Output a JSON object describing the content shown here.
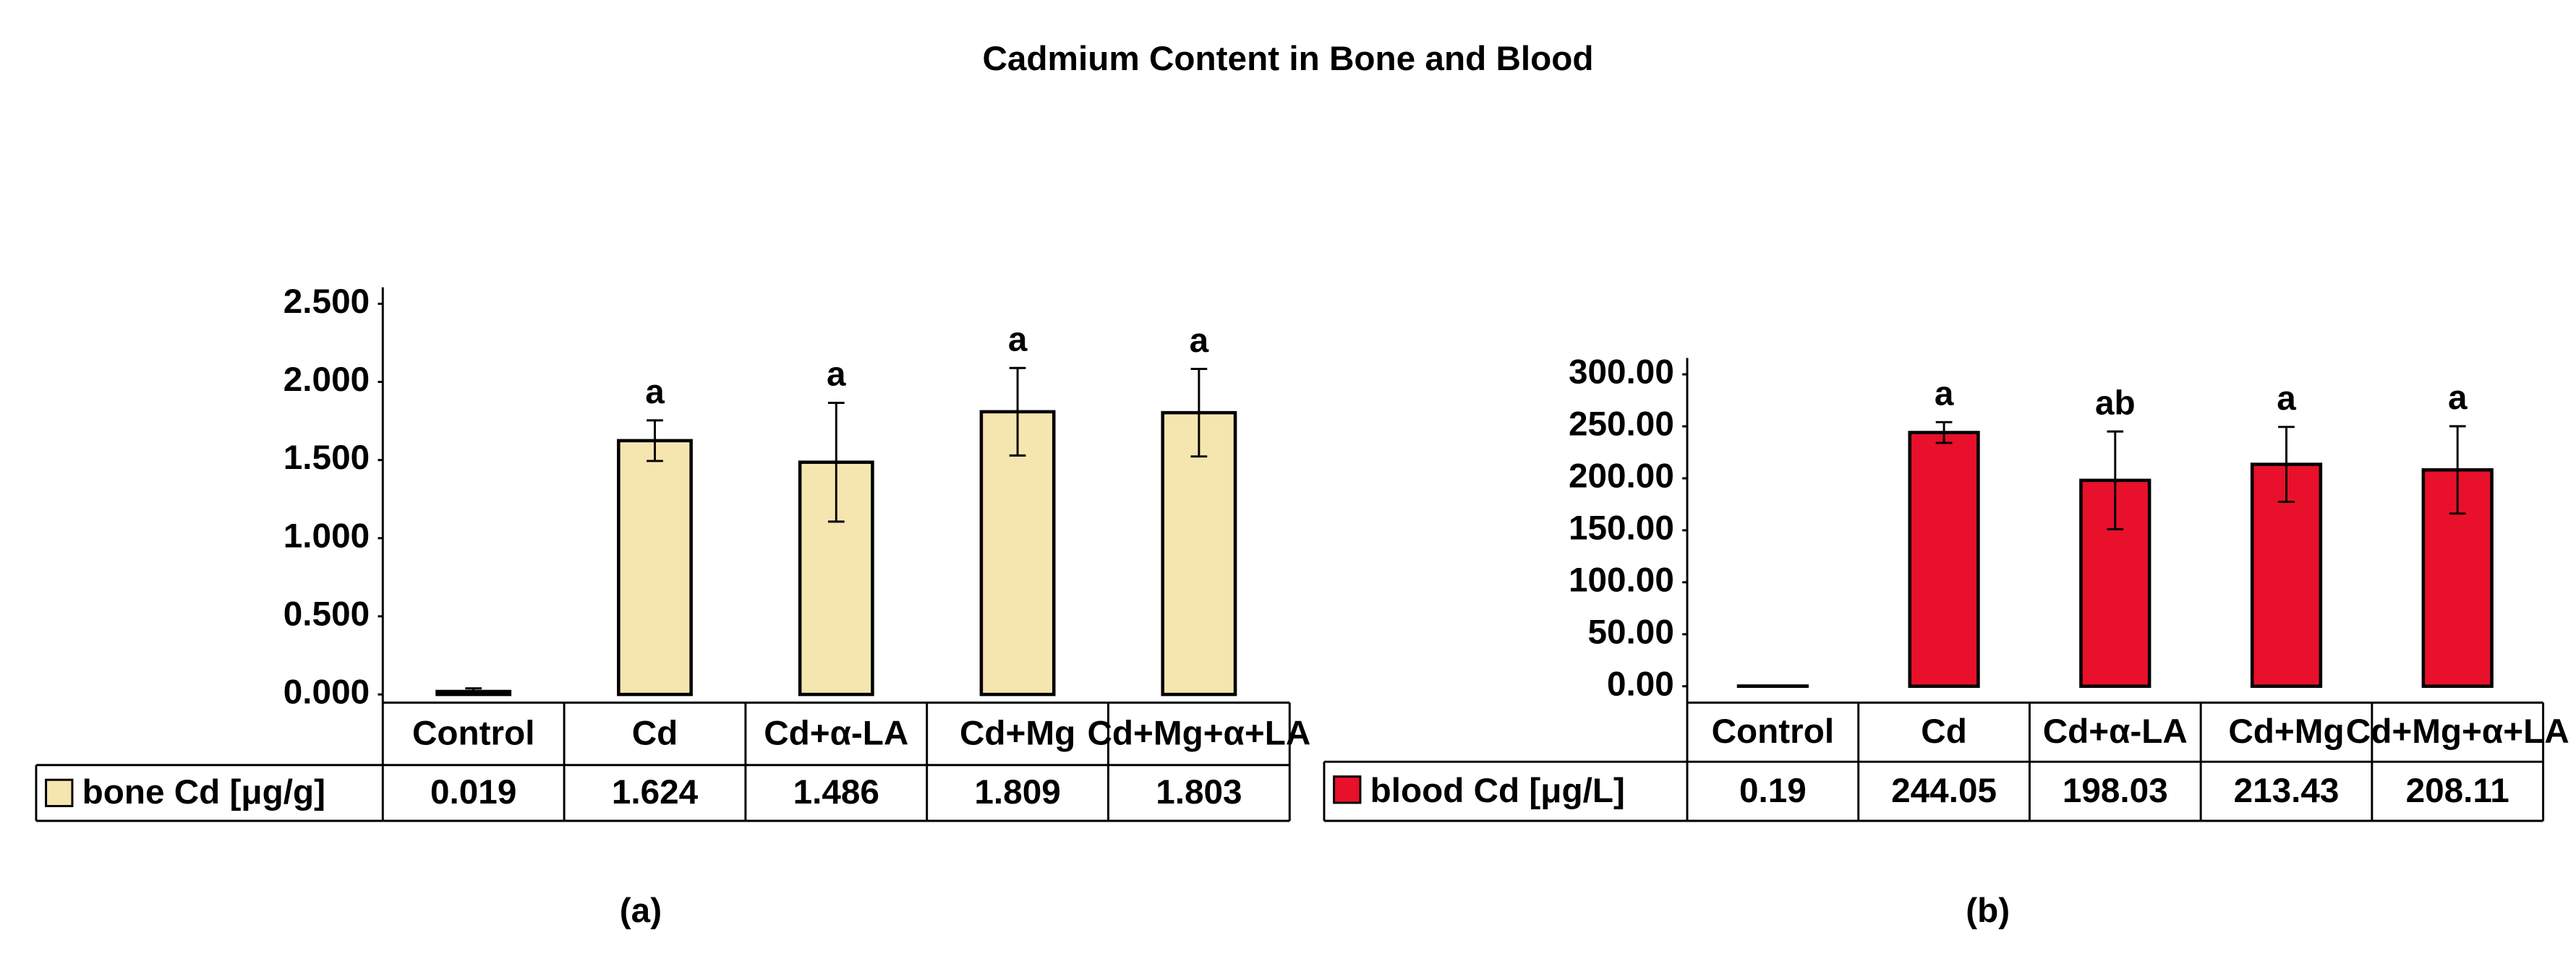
{
  "title": "Cadmium Content in Bone and Blood",
  "chart_data": [
    {
      "type": "bar",
      "panel_label": "(a)",
      "categories": [
        "Control",
        "Cd",
        "Cd+α-LA",
        "Cd+Mg",
        "Cd+Mg+α+LA"
      ],
      "series": [
        {
          "name": "bone Cd [μg/g]",
          "color": "#f5e6b0",
          "values": [
            0.019,
            1.624,
            1.486,
            1.809,
            1.803
          ],
          "errors": [
            0.02,
            0.13,
            0.38,
            0.28,
            0.28
          ],
          "letters": [
            null,
            "a",
            "a",
            "a",
            "a"
          ]
        }
      ],
      "ylim": [
        0,
        2.5
      ],
      "yticks": [
        {
          "value": 0,
          "label": "0.000"
        },
        {
          "value": 0.5,
          "label": "0.500"
        },
        {
          "value": 1,
          "label": "1.000"
        },
        {
          "value": 1.5,
          "label": "1.500"
        },
        {
          "value": 2,
          "label": "2.000"
        },
        {
          "value": 2.5,
          "label": "2.500"
        }
      ]
    },
    {
      "type": "bar",
      "panel_label": "(b)",
      "categories": [
        "Control",
        "Cd",
        "Cd+α-LA",
        "Cd+Mg",
        "Cd+Mg+α+LA"
      ],
      "series": [
        {
          "name": "blood Cd [μg/L]",
          "color": "#e8102a",
          "values": [
            0.19,
            244.05,
            198.03,
            213.43,
            208.11
          ],
          "errors": [
            0,
            10,
            47,
            36,
            42
          ],
          "letters": [
            null,
            "a",
            "ab",
            "a",
            "a"
          ]
        }
      ],
      "ylim": [
        0,
        300
      ],
      "yticks": [
        {
          "value": 0,
          "label": "0.00"
        },
        {
          "value": 50,
          "label": "50.00"
        },
        {
          "value": 100,
          "label": "100.00"
        },
        {
          "value": 150,
          "label": "150.00"
        },
        {
          "value": 200,
          "label": "200.00"
        },
        {
          "value": 250,
          "label": "250.00"
        },
        {
          "value": 300,
          "label": "300.00"
        }
      ]
    }
  ]
}
